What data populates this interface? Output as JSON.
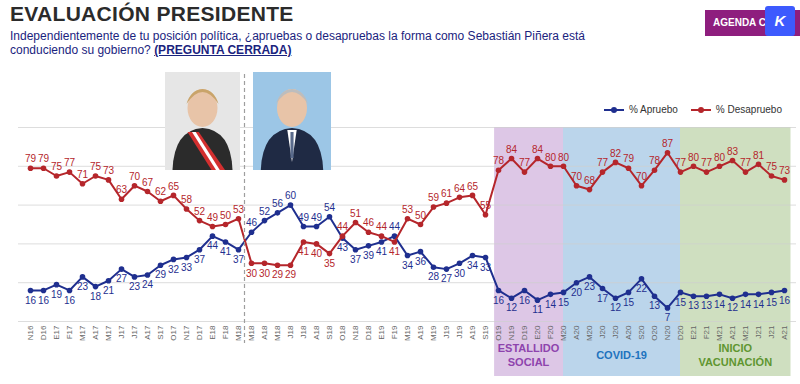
{
  "chart_data": {
    "type": "line",
    "title": "EVALUACIÓN PRESIDENTE",
    "subtitle": "Independientemente de tu posición política, ¿apruebas o desapruebas la forma como Sebastián Piñera está conduciendo su gobierno?",
    "subtitle_note": "(PREGUNTA CERRADA)",
    "categories": [
      "N16",
      "D16",
      "E17",
      "F17",
      "M17",
      "A17",
      "M17",
      "J17",
      "J17",
      "A17",
      "S17",
      "O17",
      "N17",
      "D17",
      "E18",
      "F18",
      "M18",
      "M18",
      "A18",
      "M18",
      "J18",
      "J18",
      "A18",
      "S18",
      "O18",
      "N18",
      "D18",
      "E19",
      "F19",
      "M19",
      "A19",
      "M19",
      "J19",
      "J19",
      "A19",
      "S19",
      "O19",
      "N19",
      "D19",
      "E20",
      "F20",
      "M20",
      "A20",
      "M20",
      "J20",
      "J20",
      "A20",
      "S20",
      "O20",
      "N20",
      "D20",
      "E21",
      "F21",
      "M21",
      "A21",
      "M21",
      "J21",
      "J21",
      "A21"
    ],
    "series": [
      {
        "name": "% Apruebo",
        "color": "#1f2f8f",
        "marker": "circle",
        "line_style": "solid",
        "values": [
          16,
          16,
          19,
          16,
          23,
          18,
          21,
          27,
          23,
          24,
          29,
          32,
          33,
          37,
          44,
          41,
          37,
          46,
          52,
          56,
          60,
          49,
          49,
          54,
          43,
          37,
          39,
          41,
          44,
          34,
          36,
          28,
          27,
          30,
          34,
          33,
          16,
          12,
          16,
          11,
          14,
          15,
          20,
          23,
          17,
          12,
          15,
          22,
          13,
          7,
          15,
          13,
          13,
          14,
          12,
          14,
          14,
          15,
          16
        ]
      },
      {
        "name": "% Desapruebo",
        "color": "#b5262b",
        "marker": "circle",
        "line_style": "solid",
        "values": [
          79,
          79,
          75,
          77,
          71,
          75,
          73,
          63,
          70,
          67,
          62,
          65,
          58,
          52,
          49,
          50,
          53,
          30,
          30,
          29,
          29,
          41,
          40,
          35,
          44,
          51,
          46,
          44,
          41,
          53,
          50,
          59,
          61,
          64,
          65,
          55,
          78,
          84,
          77,
          84,
          80,
          80,
          70,
          68,
          77,
          82,
          79,
          70,
          78,
          87,
          77,
          80,
          77,
          80,
          83,
          77,
          81,
          75,
          73
        ]
      }
    ],
    "ylim": [
      0,
      100
    ],
    "yticks": [
      0,
      20,
      40,
      60,
      80,
      100
    ],
    "grid": true,
    "tick_labels": "x",
    "data_labels": true,
    "legend": "top-right",
    "annotations": {
      "badge": "AGENDA C",
      "badge_icon": "K",
      "divider": 16.5,
      "periods": [
        {
          "label": "ESTALLIDO\nSOCIAL",
          "start": 35.7,
          "end": 41,
          "color": "#8e44ad"
        },
        {
          "label": "COVID-19",
          "start": 41,
          "end": 50,
          "color": "#1e73be"
        },
        {
          "label": "INICIO\nVACUNACIÓN",
          "start": 50,
          "end": 58.5,
          "color": "#5f9630"
        }
      ]
    }
  }
}
